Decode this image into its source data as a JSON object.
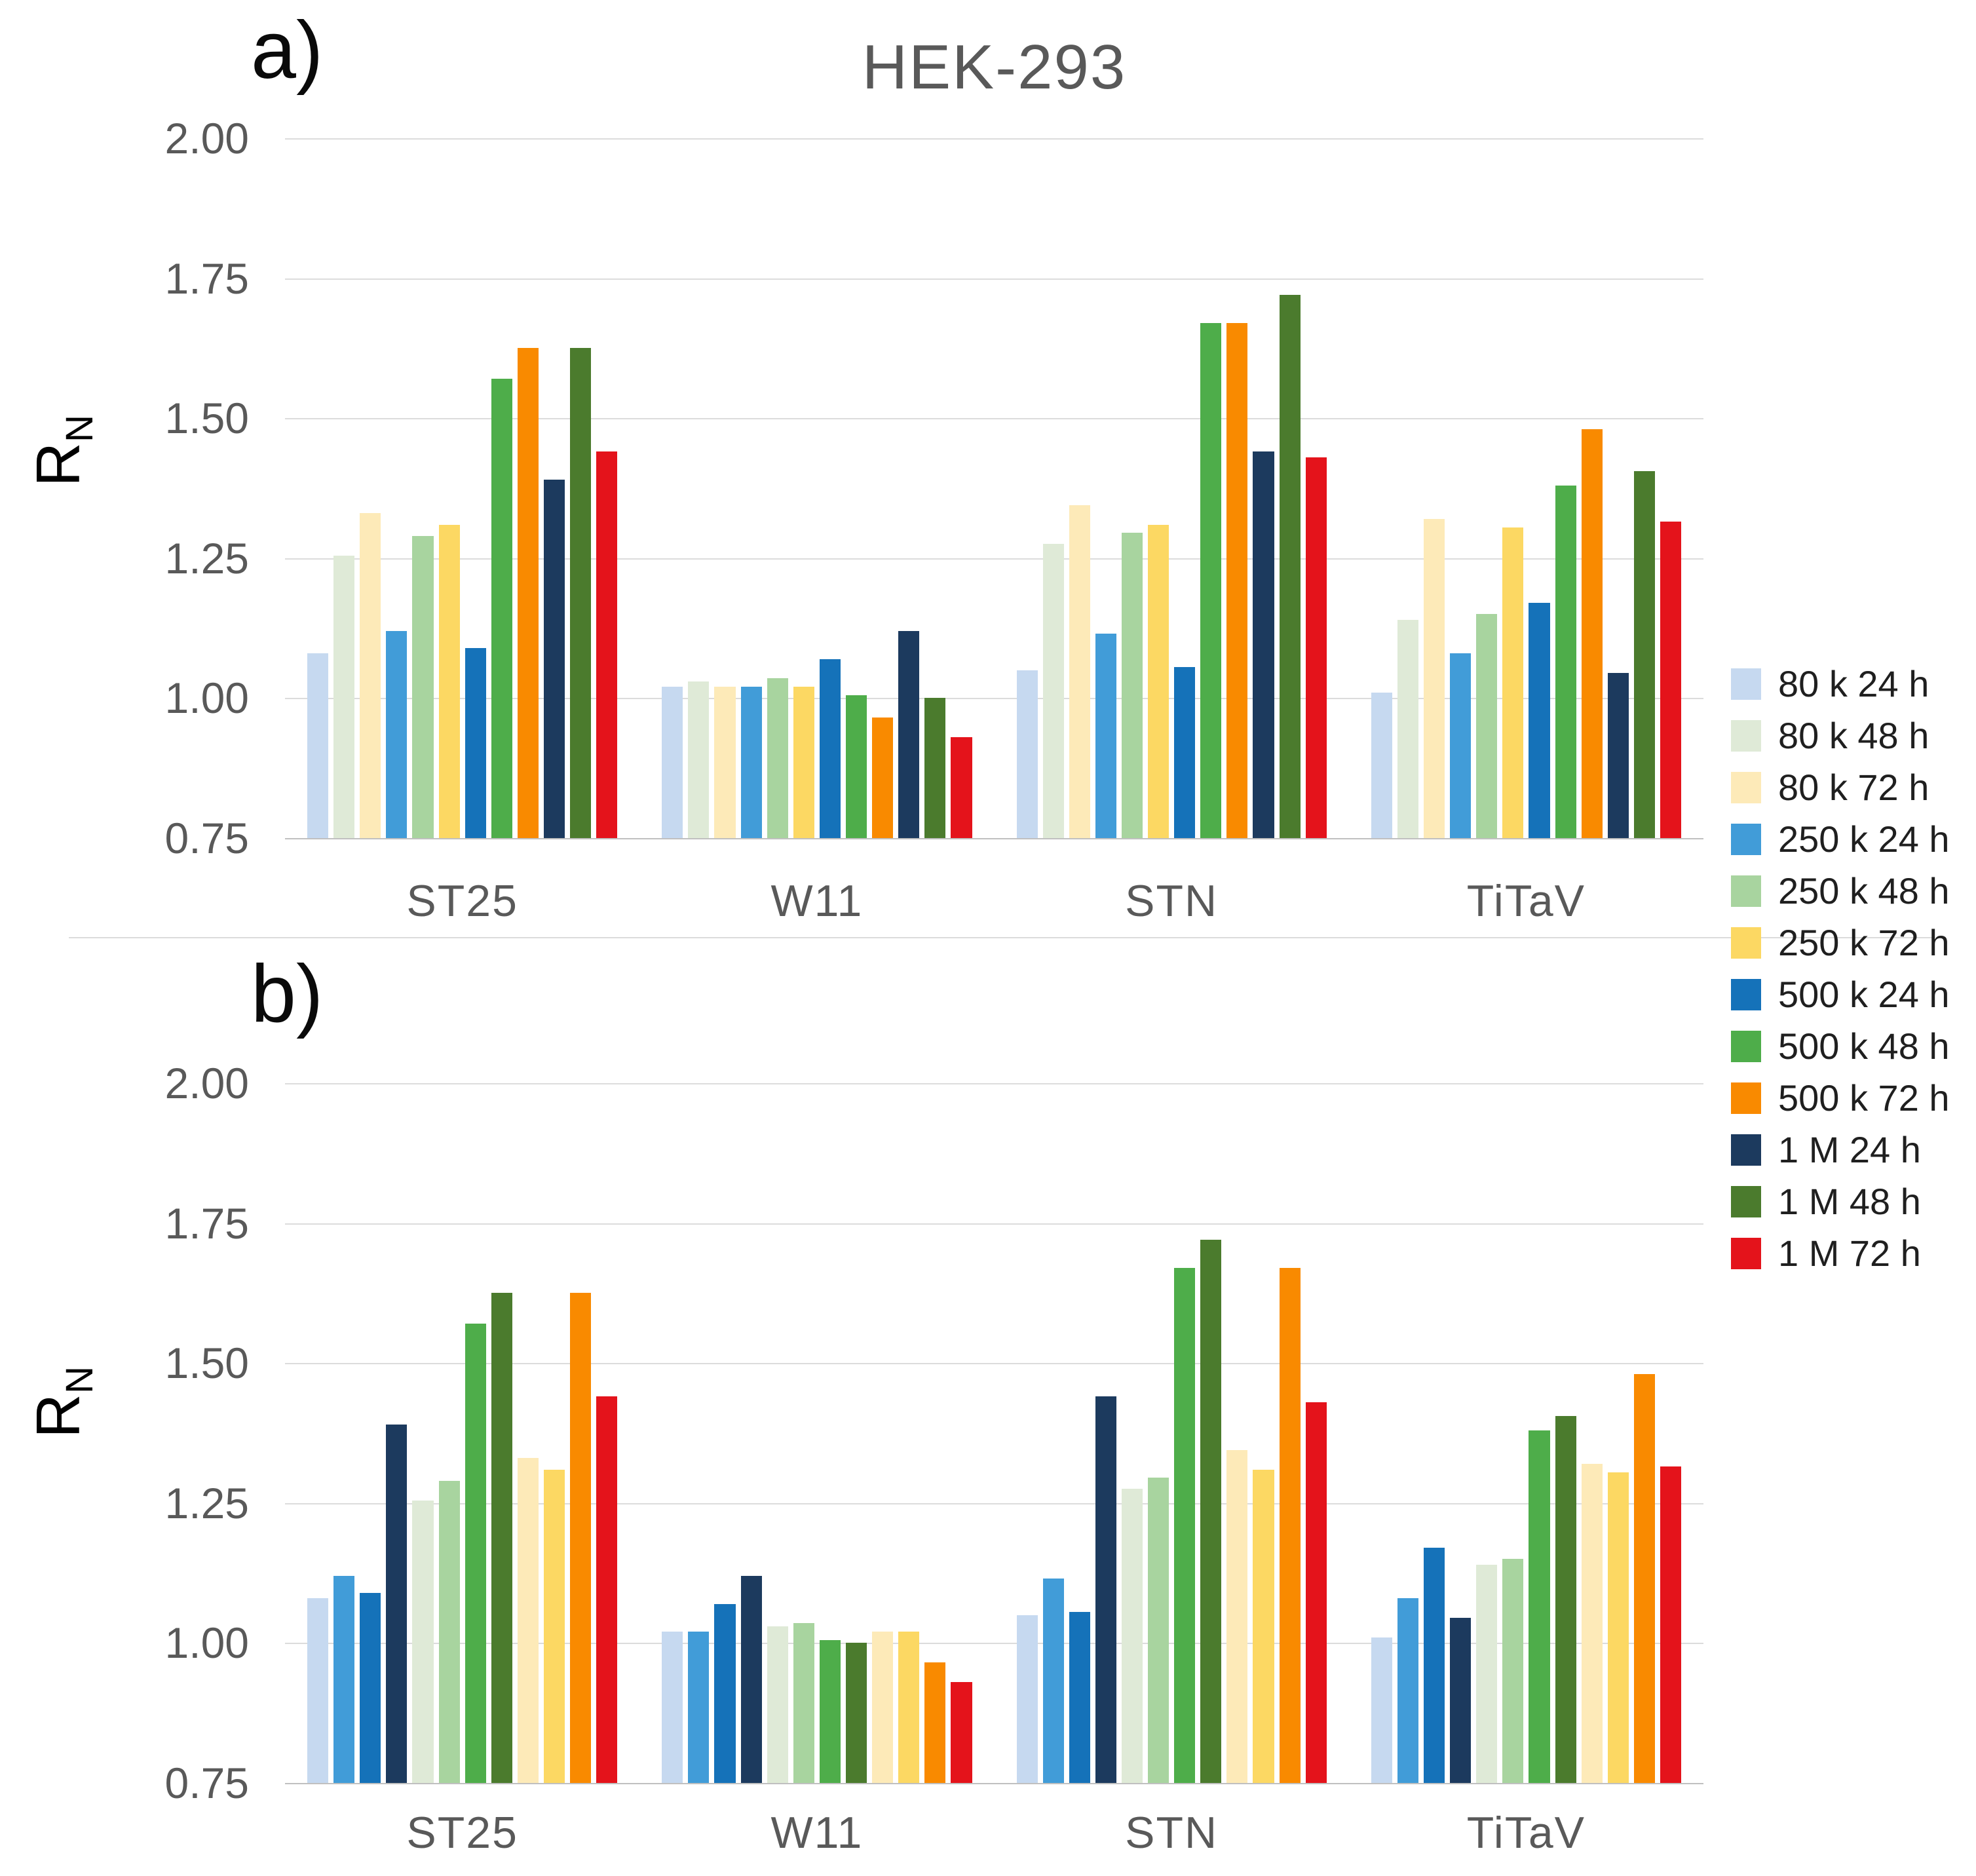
{
  "title": "HEK-293",
  "ylabel": {
    "main": "R",
    "sub": "N"
  },
  "panels": [
    {
      "label": "a)"
    },
    {
      "label": "b)"
    }
  ],
  "chart_data": {
    "type": "bar",
    "title": "HEK-293",
    "ylabel": "RN",
    "ylim": [
      0.75,
      2.0
    ],
    "yticks": [
      "2.00",
      "1.75",
      "1.50",
      "1.25",
      "1.00",
      "0.75"
    ],
    "grid": "horizontal",
    "legend_position": "right",
    "categories": [
      "ST25",
      "W11",
      "STN",
      "TiTaV"
    ],
    "series": [
      {
        "name": "80 k 24 h",
        "color": "#c6d9f0",
        "values": [
          1.08,
          1.02,
          1.05,
          1.01
        ]
      },
      {
        "name": "80 k 48 h",
        "color": "#dfead7",
        "values": [
          1.255,
          1.03,
          1.275,
          1.14
        ]
      },
      {
        "name": "80 k 72 h",
        "color": "#fdeab8",
        "values": [
          1.33,
          1.02,
          1.345,
          1.32
        ]
      },
      {
        "name": "250 k 24 h",
        "color": "#419cd8",
        "values": [
          1.12,
          1.02,
          1.115,
          1.08
        ]
      },
      {
        "name": "250 k 48 h",
        "color": "#a8d49f",
        "values": [
          1.29,
          1.035,
          1.295,
          1.15
        ]
      },
      {
        "name": "250 k 72 h",
        "color": "#fcd863",
        "values": [
          1.31,
          1.02,
          1.31,
          1.305
        ]
      },
      {
        "name": "500 k 24 h",
        "color": "#1572b9",
        "values": [
          1.09,
          1.07,
          1.055,
          1.17
        ]
      },
      {
        "name": "500 k 48 h",
        "color": "#4ead4a",
        "values": [
          1.57,
          1.005,
          1.67,
          1.38
        ]
      },
      {
        "name": "500 k 72 h",
        "color": "#f98a00",
        "values": [
          1.625,
          0.965,
          1.67,
          1.48
        ]
      },
      {
        "name": "1 M 24 h",
        "color": "#1c3a5e",
        "values": [
          1.39,
          1.12,
          1.44,
          1.045
        ]
      },
      {
        "name": "1 M 48 h",
        "color": "#4b7b2d",
        "values": [
          1.625,
          1.0,
          1.72,
          1.405
        ]
      },
      {
        "name": "1 M 72 h",
        "color": "#e4131b",
        "values": [
          1.44,
          0.93,
          1.43,
          1.315
        ]
      }
    ],
    "panels": [
      {
        "label": "a)",
        "grouping": "by density then time",
        "series_order": [
          0,
          1,
          2,
          3,
          4,
          5,
          6,
          7,
          8,
          9,
          10,
          11
        ]
      },
      {
        "label": "b)",
        "grouping": "by time then density",
        "series_order": [
          0,
          3,
          6,
          9,
          1,
          4,
          7,
          10,
          2,
          5,
          8,
          11
        ]
      }
    ]
  }
}
